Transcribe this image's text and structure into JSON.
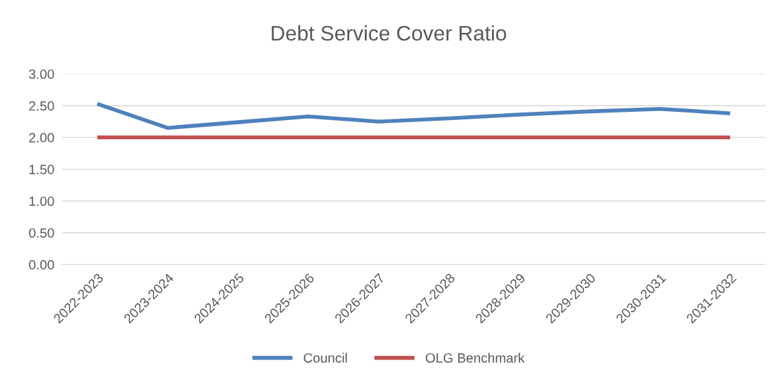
{
  "chart_data": {
    "type": "line",
    "title": "Debt Service Cover Ratio",
    "categories": [
      "2022-2023",
      "2023-2024",
      "2024-2025",
      "2025-2026",
      "2026-2027",
      "2027-2028",
      "2028-2029",
      "2029-2030",
      "2030-2031",
      "2031-2032"
    ],
    "series": [
      {
        "name": "Council",
        "color": "#4f81bd",
        "values": [
          2.53,
          2.15,
          2.24,
          2.33,
          2.25,
          2.3,
          2.36,
          2.41,
          2.45,
          2.38
        ]
      },
      {
        "name": "OLG Benchmark",
        "color": "#c0504d",
        "values": [
          2.0,
          2.0,
          2.0,
          2.0,
          2.0,
          2.0,
          2.0,
          2.0,
          2.0,
          2.0
        ]
      }
    ],
    "ylim": [
      0,
      3
    ],
    "yticks": [
      {
        "value": 0,
        "label": "0.00"
      },
      {
        "value": 0.5,
        "label": "0.50"
      },
      {
        "value": 1,
        "label": "1.00"
      },
      {
        "value": 1.5,
        "label": "1.50"
      },
      {
        "value": 2,
        "label": "2.00"
      },
      {
        "value": 2.5,
        "label": "2.50"
      },
      {
        "value": 3,
        "label": "3.00"
      }
    ],
    "grid": "y",
    "legend": "bottom",
    "marker": "none",
    "line_style": "solid"
  }
}
